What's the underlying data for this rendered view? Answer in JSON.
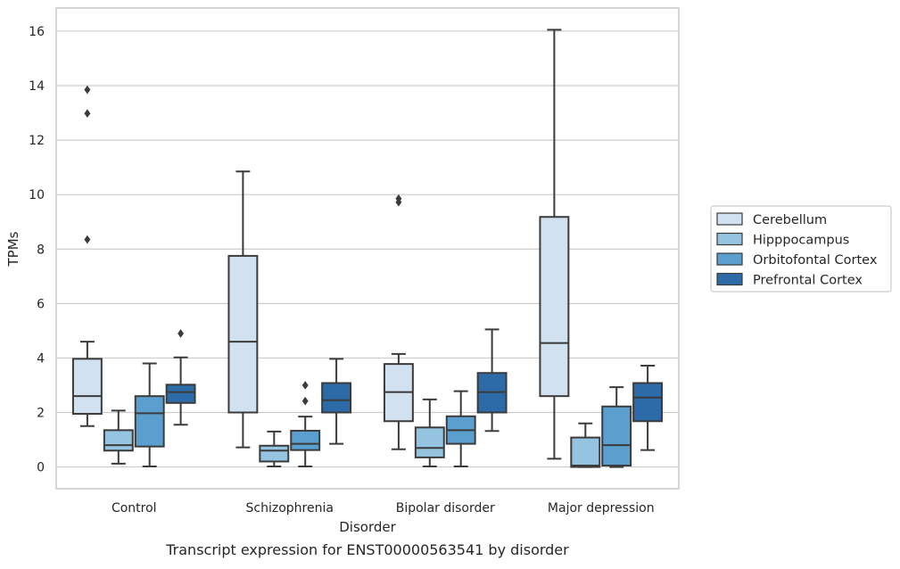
{
  "chart_data": {
    "type": "boxplot",
    "title": "",
    "caption": "Transcript expression for ENST00000563541 by disorder",
    "xlabel": "Disorder",
    "ylabel": "TPMs",
    "ylim": [
      -0.8,
      16.85
    ],
    "yticks": [
      0,
      2,
      4,
      6,
      8,
      10,
      12,
      14,
      16
    ],
    "grid": "horizontal",
    "legend_position": "right, outside plot",
    "categories": [
      "Control",
      "Schizophrenia",
      "Bipolar disorder",
      "Major depression"
    ],
    "series": [
      {
        "name": "Cerebellum",
        "color": "#d1e1f0",
        "boxes": [
          {
            "whisker_low": 1.5,
            "q1": 1.95,
            "median": 2.6,
            "q3": 3.97,
            "whisker_high": 4.6,
            "outliers": [
              8.35,
              12.98,
              13.85
            ]
          },
          {
            "whisker_low": 0.72,
            "q1": 2.0,
            "median": 4.6,
            "q3": 7.75,
            "whisker_high": 10.85,
            "outliers": []
          },
          {
            "whisker_low": 0.65,
            "q1": 1.68,
            "median": 2.75,
            "q3": 3.78,
            "whisker_high": 4.15,
            "outliers": [
              9.72,
              9.85
            ]
          },
          {
            "whisker_low": 0.3,
            "q1": 2.6,
            "median": 4.55,
            "q3": 9.18,
            "whisker_high": 16.05,
            "outliers": []
          }
        ]
      },
      {
        "name": "Hipppocampus",
        "color": "#94c4df",
        "boxes": [
          {
            "whisker_low": 0.12,
            "q1": 0.6,
            "median": 0.8,
            "q3": 1.35,
            "whisker_high": 2.07,
            "outliers": []
          },
          {
            "whisker_low": 0.02,
            "q1": 0.2,
            "median": 0.6,
            "q3": 0.78,
            "whisker_high": 1.3,
            "outliers": []
          },
          {
            "whisker_low": 0.02,
            "q1": 0.35,
            "median": 0.7,
            "q3": 1.45,
            "whisker_high": 2.48,
            "outliers": []
          },
          {
            "whisker_low": 0.0,
            "q1": 0.0,
            "median": 0.05,
            "q3": 1.08,
            "whisker_high": 1.6,
            "outliers": []
          }
        ]
      },
      {
        "name": "Orbitofontal Cortex",
        "color": "#5a9fcd",
        "boxes": [
          {
            "whisker_low": 0.02,
            "q1": 0.75,
            "median": 1.97,
            "q3": 2.6,
            "whisker_high": 3.8,
            "outliers": []
          },
          {
            "whisker_low": 0.02,
            "q1": 0.62,
            "median": 0.85,
            "q3": 1.33,
            "whisker_high": 1.85,
            "outliers": [
              2.42,
              3.0
            ]
          },
          {
            "whisker_low": 0.02,
            "q1": 0.85,
            "median": 1.35,
            "q3": 1.86,
            "whisker_high": 2.78,
            "outliers": []
          },
          {
            "whisker_low": 0.0,
            "q1": 0.05,
            "median": 0.8,
            "q3": 2.22,
            "whisker_high": 2.93,
            "outliers": []
          }
        ]
      },
      {
        "name": "Prefrontal Cortex",
        "color": "#2d6ba8",
        "boxes": [
          {
            "whisker_low": 1.55,
            "q1": 2.35,
            "median": 2.75,
            "q3": 3.02,
            "whisker_high": 4.02,
            "outliers": [
              4.9
            ]
          },
          {
            "whisker_low": 0.85,
            "q1": 2.0,
            "median": 2.45,
            "q3": 3.08,
            "whisker_high": 3.97,
            "outliers": []
          },
          {
            "whisker_low": 1.32,
            "q1": 2.0,
            "median": 2.75,
            "q3": 3.45,
            "whisker_high": 5.05,
            "outliers": []
          },
          {
            "whisker_low": 0.62,
            "q1": 1.68,
            "median": 2.55,
            "q3": 3.08,
            "whisker_high": 3.72,
            "outliers": []
          }
        ]
      }
    ]
  }
}
